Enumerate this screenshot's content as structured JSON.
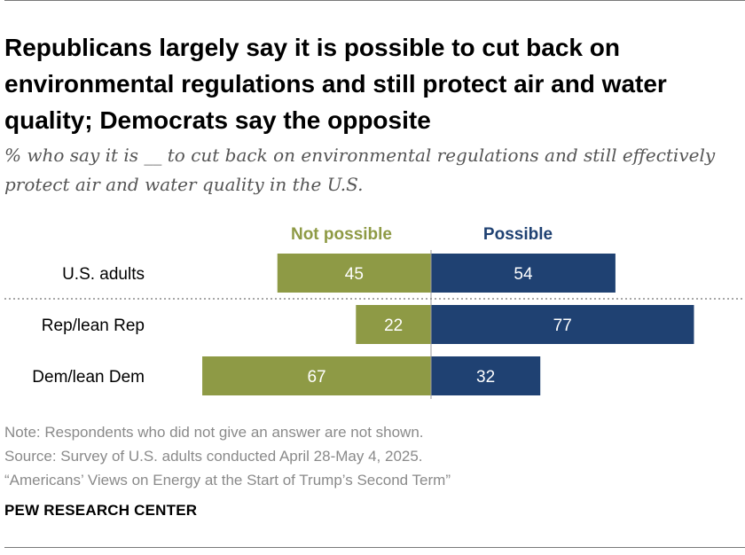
{
  "header": {
    "title": "Republicans largely say it is possible to cut back on environmental regulations and still protect air and water quality; Democrats say the opposite",
    "subtitle": "% who say it is __ to cut back on environmental regulations and still effectively protect air and water quality in the U.S."
  },
  "chart_data": {
    "type": "bar",
    "orientation": "horizontal-diverging",
    "categories": [
      "U.S. adults",
      "Rep/lean Rep",
      "Dem/lean Dem"
    ],
    "series": [
      {
        "name": "Not possible",
        "values": [
          45,
          22,
          67
        ],
        "color": "#8e9a45",
        "side": "left"
      },
      {
        "name": "Possible",
        "values": [
          54,
          77,
          32
        ],
        "color": "#1f4172",
        "side": "right"
      }
    ],
    "legend_placement": "top",
    "grid": false,
    "divider_after_category": "U.S. adults"
  },
  "footer": {
    "note": "Note: Respondents who did not give an answer are not shown.",
    "source": "Source: Survey of U.S. adults conducted April 28-May 4, 2025.",
    "report": "“Americans’ Views on Energy at the Start of Trump’s Second Term”",
    "brand": "PEW RESEARCH CENTER"
  }
}
